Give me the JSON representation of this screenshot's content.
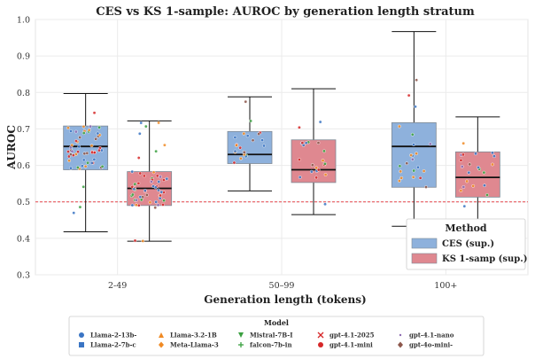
{
  "chart_data": {
    "type": "box",
    "title": "CES vs KS 1-sample: AUROC by generation length stratum",
    "xlabel": "Generation length (tokens)",
    "ylabel": "AUROC",
    "ylim": [
      0.3,
      1.0
    ],
    "yticks": [
      "0.3",
      "0.4",
      "0.5",
      "0.6",
      "0.7",
      "0.8",
      "0.9",
      "1.0"
    ],
    "categories": [
      "2-49",
      "50–99",
      "100+"
    ],
    "reference_line": {
      "y": 0.5,
      "color": "#e8474c",
      "style": "dashed"
    },
    "grid": true,
    "series": [
      {
        "name": "CES (sup.)",
        "color": "#8eb1dc",
        "boxes": [
          {
            "whislo": 0.418,
            "q1": 0.588,
            "med": 0.652,
            "q3": 0.708,
            "whishi": 0.797
          },
          {
            "whislo": 0.53,
            "q1": 0.605,
            "med": 0.63,
            "q3": 0.693,
            "whishi": 0.788
          },
          {
            "whislo": 0.433,
            "q1": 0.54,
            "med": 0.652,
            "q3": 0.717,
            "whishi": 0.967
          }
        ]
      },
      {
        "name": "KS 1-samp (sup.)",
        "color": "#df8890",
        "boxes": [
          {
            "whislo": 0.392,
            "q1": 0.49,
            "med": 0.537,
            "q3": 0.583,
            "whishi": 0.722
          },
          {
            "whislo": 0.465,
            "q1": 0.553,
            "med": 0.588,
            "q3": 0.67,
            "whishi": 0.81
          },
          {
            "whislo": 0.435,
            "q1": 0.513,
            "med": 0.567,
            "q3": 0.637,
            "whishi": 0.733
          }
        ]
      }
    ],
    "legend": {
      "title": "Method",
      "placement": "lower-right"
    },
    "model_legend": {
      "title": "Model",
      "placement": "below",
      "entries": [
        {
          "label": "Llama-2-13b-",
          "marker": "circle",
          "color": "#3a75c4"
        },
        {
          "label": "Llama-2-7b-c",
          "marker": "square",
          "color": "#3a75c4"
        },
        {
          "label": "Llama-3.2-1B",
          "marker": "triangle-up",
          "color": "#f08a24"
        },
        {
          "label": "Meta-Llama-3",
          "marker": "diamond",
          "color": "#f08a24"
        },
        {
          "label": "Mistral-7B-I",
          "marker": "triangle-down",
          "color": "#3aa040"
        },
        {
          "label": "falcon-7b-in",
          "marker": "plus",
          "color": "#3aa040"
        },
        {
          "label": "gpt-4.1-2025",
          "marker": "x",
          "color": "#d62728"
        },
        {
          "label": "gpt-4.1-mini",
          "marker": "circle",
          "color": "#d62728"
        },
        {
          "label": "gpt-4.1-nano",
          "marker": "point",
          "color": "#8c6bb1"
        },
        {
          "label": "gpt-4o-mini-",
          "marker": "diamond",
          "color": "#8c564b"
        }
      ]
    }
  }
}
